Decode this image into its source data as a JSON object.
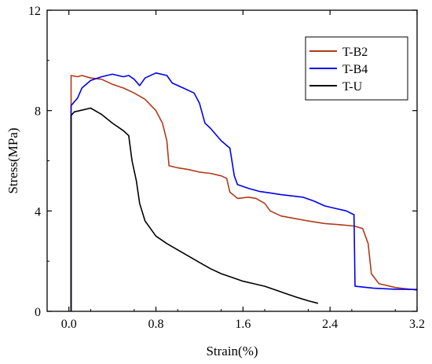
{
  "chart_data": {
    "type": "line",
    "xlabel": "Strain(%)",
    "ylabel": "Stress(MPa)",
    "xlim": [
      -0.2,
      3.2
    ],
    "ylim": [
      0,
      12
    ],
    "xticks": [
      0.0,
      0.8,
      1.6,
      2.4,
      3.2
    ],
    "xtick_labels": [
      "0.0",
      "0.8",
      "1.6",
      "2.4",
      "3.2"
    ],
    "yticks": [
      0,
      4,
      8,
      12
    ],
    "ytick_labels": [
      "0",
      "4",
      "8",
      "12"
    ],
    "grid": false,
    "legend_position": "top-right",
    "series": [
      {
        "name": "T-B2",
        "color": "#b03a1a",
        "points": [
          [
            0.02,
            0
          ],
          [
            0.02,
            9.4
          ],
          [
            0.08,
            9.35
          ],
          [
            0.12,
            9.4
          ],
          [
            0.2,
            9.3
          ],
          [
            0.3,
            9.25
          ],
          [
            0.4,
            9.05
          ],
          [
            0.5,
            8.9
          ],
          [
            0.6,
            8.7
          ],
          [
            0.7,
            8.45
          ],
          [
            0.8,
            8.0
          ],
          [
            0.86,
            7.5
          ],
          [
            0.9,
            6.8
          ],
          [
            0.92,
            5.8
          ],
          [
            1.0,
            5.72
          ],
          [
            1.1,
            5.65
          ],
          [
            1.2,
            5.55
          ],
          [
            1.3,
            5.5
          ],
          [
            1.4,
            5.4
          ],
          [
            1.45,
            5.3
          ],
          [
            1.48,
            4.75
          ],
          [
            1.55,
            4.5
          ],
          [
            1.65,
            4.55
          ],
          [
            1.72,
            4.5
          ],
          [
            1.8,
            4.3
          ],
          [
            1.85,
            4.0
          ],
          [
            1.95,
            3.8
          ],
          [
            2.05,
            3.72
          ],
          [
            2.2,
            3.6
          ],
          [
            2.35,
            3.5
          ],
          [
            2.5,
            3.45
          ],
          [
            2.62,
            3.4
          ],
          [
            2.7,
            3.3
          ],
          [
            2.75,
            2.7
          ],
          [
            2.78,
            1.5
          ],
          [
            2.85,
            1.1
          ],
          [
            3.0,
            0.95
          ],
          [
            3.2,
            0.85
          ]
        ]
      },
      {
        "name": "T-B4",
        "color": "#0000ee",
        "points": [
          [
            0.02,
            0
          ],
          [
            0.02,
            8.2
          ],
          [
            0.08,
            8.5
          ],
          [
            0.12,
            8.9
          ],
          [
            0.2,
            9.2
          ],
          [
            0.3,
            9.35
          ],
          [
            0.4,
            9.45
          ],
          [
            0.5,
            9.35
          ],
          [
            0.55,
            9.4
          ],
          [
            0.6,
            9.25
          ],
          [
            0.65,
            9.0
          ],
          [
            0.7,
            9.3
          ],
          [
            0.8,
            9.5
          ],
          [
            0.9,
            9.4
          ],
          [
            0.95,
            9.1
          ],
          [
            1.05,
            8.9
          ],
          [
            1.15,
            8.7
          ],
          [
            1.2,
            8.3
          ],
          [
            1.25,
            7.5
          ],
          [
            1.3,
            7.3
          ],
          [
            1.4,
            6.8
          ],
          [
            1.48,
            6.5
          ],
          [
            1.52,
            5.4
          ],
          [
            1.55,
            5.05
          ],
          [
            1.65,
            4.9
          ],
          [
            1.75,
            4.78
          ],
          [
            1.85,
            4.72
          ],
          [
            1.95,
            4.65
          ],
          [
            2.05,
            4.6
          ],
          [
            2.15,
            4.55
          ],
          [
            2.25,
            4.4
          ],
          [
            2.35,
            4.2
          ],
          [
            2.45,
            4.1
          ],
          [
            2.55,
            4.0
          ],
          [
            2.62,
            3.85
          ],
          [
            2.63,
            1.0
          ],
          [
            2.8,
            0.92
          ],
          [
            3.0,
            0.88
          ],
          [
            3.2,
            0.87
          ]
        ]
      },
      {
        "name": "T-U",
        "color": "#000000",
        "points": [
          [
            0.02,
            0
          ],
          [
            0.02,
            7.8
          ],
          [
            0.05,
            7.95
          ],
          [
            0.1,
            8.0
          ],
          [
            0.2,
            8.1
          ],
          [
            0.3,
            7.85
          ],
          [
            0.4,
            7.5
          ],
          [
            0.5,
            7.2
          ],
          [
            0.55,
            7.0
          ],
          [
            0.58,
            6.0
          ],
          [
            0.62,
            5.2
          ],
          [
            0.65,
            4.3
          ],
          [
            0.7,
            3.6
          ],
          [
            0.75,
            3.3
          ],
          [
            0.8,
            3.0
          ],
          [
            0.9,
            2.7
          ],
          [
            1.0,
            2.45
          ],
          [
            1.1,
            2.2
          ],
          [
            1.2,
            1.95
          ],
          [
            1.3,
            1.7
          ],
          [
            1.4,
            1.5
          ],
          [
            1.5,
            1.35
          ],
          [
            1.6,
            1.2
          ],
          [
            1.7,
            1.1
          ],
          [
            1.8,
            1.0
          ],
          [
            1.9,
            0.85
          ],
          [
            2.0,
            0.7
          ],
          [
            2.1,
            0.55
          ],
          [
            2.2,
            0.42
          ],
          [
            2.29,
            0.32
          ]
        ]
      }
    ]
  }
}
